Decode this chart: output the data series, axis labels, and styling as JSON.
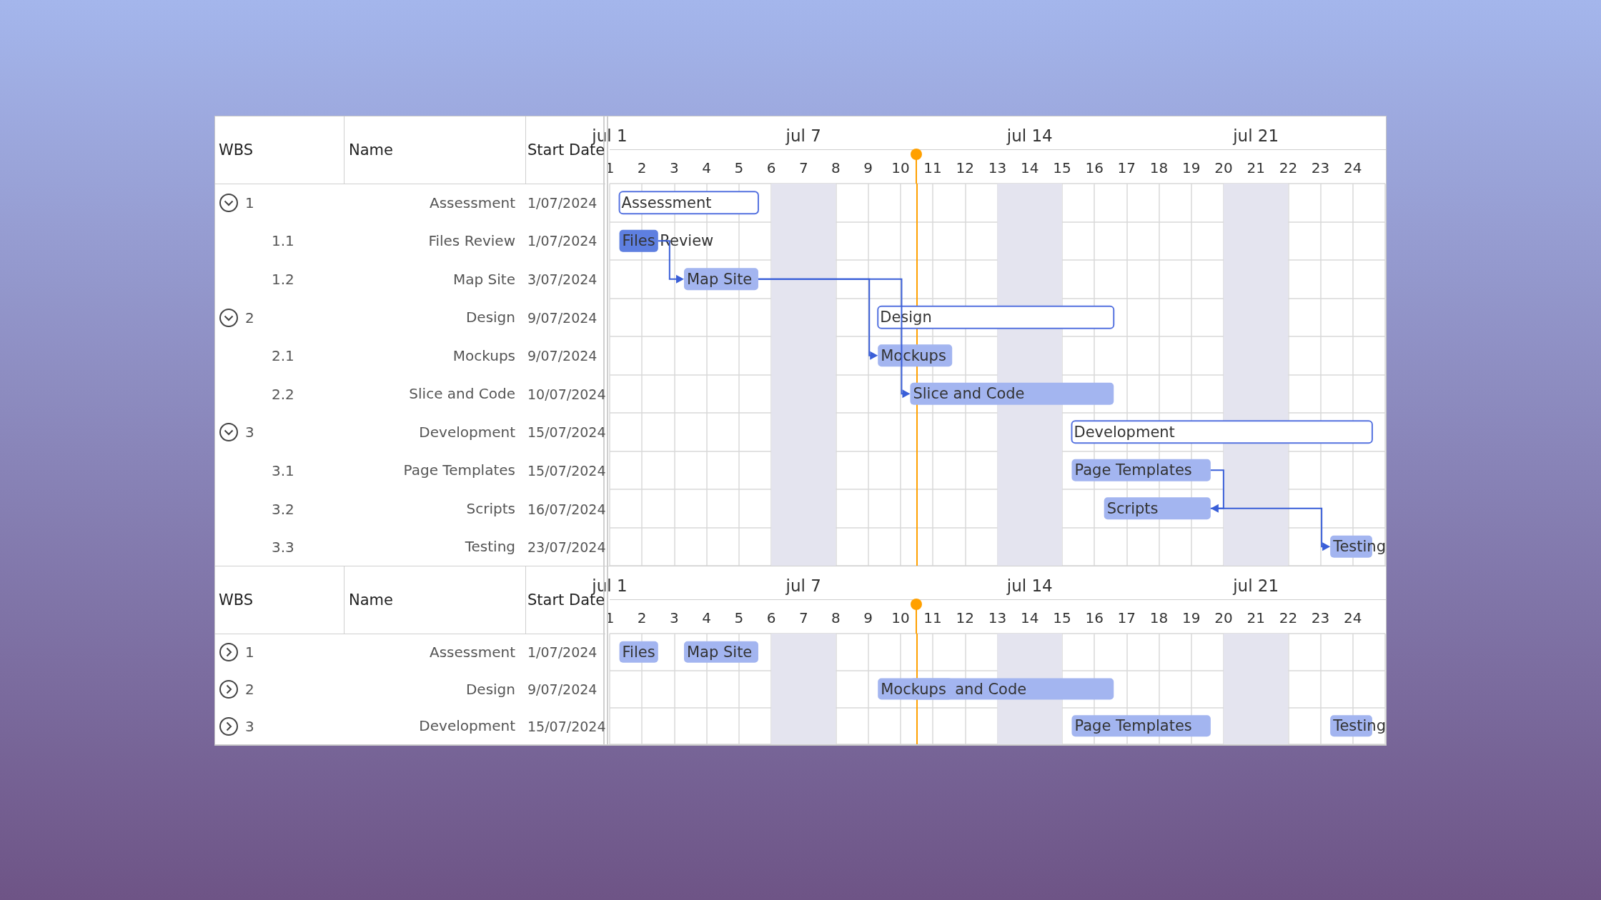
{
  "chart_data": [
    {
      "type": "bar",
      "orientation": "horizontal",
      "categories": [
        "Assessment",
        "Files Review",
        "Map Site",
        "Design",
        "Mockups",
        "Slice and Code",
        "Development",
        "Page Templates",
        "Scripts",
        "Testing"
      ],
      "y2_categories": [
        "1/07/2024",
        "1/07/2024",
        "3/07/2024",
        "9/07/2024",
        "9/07/2024",
        "10/07/2024",
        "15/07/2024",
        "15/07/2024",
        "16/07/2024",
        "23/07/2024"
      ],
      "base": [
        1.3,
        1.3,
        3.3,
        9.3,
        9.3,
        10.3,
        15.3,
        15.3,
        16.3,
        23.3
      ],
      "values": [
        4.3,
        1.2,
        2.3,
        7.3,
        2.3,
        6.3,
        9.3,
        4.3,
        3.3,
        1.3
      ],
      "colors": [
        "#ffffff",
        "#5e7fe0",
        "#a3b5f0",
        "#ffffff",
        "#a3b5f0",
        "#a3b5f0",
        "#ffffff",
        "#a3b5f0",
        "#a3b5f0",
        "#a3b5f0"
      ],
      "value_labels": [
        "Assessment",
        "Files Review",
        "Map Site",
        "Design",
        "Mockups",
        "Slice and Code",
        "Development",
        "Page Templates",
        "Scripts",
        "Testing"
      ],
      "xlim": [
        1,
        25
      ],
      "xticks": [
        1,
        2,
        3,
        4,
        5,
        6,
        7,
        8,
        9,
        10,
        11,
        12,
        13,
        14,
        15,
        16,
        17,
        18,
        19,
        20,
        21,
        22,
        23,
        24
      ],
      "x2lim": [
        "2024-07-01",
        "2024-07-25"
      ],
      "x2ticks": [
        {
          "value": "2024-07-01",
          "label": "jul 1"
        },
        {
          "value": "2024-07-07",
          "label": "jul 7"
        },
        {
          "value": "2024-07-14",
          "label": "jul 14"
        },
        {
          "value": "2024-07-21",
          "label": "jul 21"
        }
      ],
      "bands": [
        {
          "axis": "x",
          "from": 6,
          "to": 8,
          "color": "#e4e4ef"
        },
        {
          "axis": "x",
          "from": 13,
          "to": 15,
          "color": "#e4e4ef"
        },
        {
          "axis": "x",
          "from": 20,
          "to": 22,
          "color": "#e4e4ef"
        }
      ],
      "ref_lines": [
        {
          "axis": "x",
          "value": 10.5,
          "color": "#ffa000"
        }
      ],
      "grid": true,
      "annotations": [
        "WBS",
        "Name",
        "Start Date",
        "1",
        "1.1",
        "1.2",
        "2",
        "2.1",
        "2.2",
        "3",
        "3.1",
        "3.2",
        "3.3"
      ]
    },
    {
      "type": "bar",
      "orientation": "horizontal",
      "categories": [
        "Assessment",
        "Design",
        "Development"
      ],
      "y2_categories": [
        "1/07/2024",
        "9/07/2024",
        "15/07/2024"
      ],
      "series": [
        {
          "color": "#a3b5f0",
          "base": [
            1.3,
            9.3,
            15.3
          ],
          "values": [
            1.2,
            2.3,
            4.3
          ],
          "value_labels": [
            "Files",
            "Mockups",
            "Page Templates"
          ]
        },
        {
          "color": "#a3b5f0",
          "base": [
            3.3,
            10.3,
            null
          ],
          "values": [
            2.3,
            6.3,
            null
          ],
          "value_labels": [
            "Map Site",
            "and Code",
            null
          ]
        },
        {
          "color": "#a3b5f0",
          "base": [
            null,
            null,
            23.3
          ],
          "values": [
            null,
            null,
            1.3
          ],
          "value_labels": [
            null,
            null,
            "Testing"
          ]
        }
      ],
      "xlim": [
        1,
        25
      ],
      "xticks": [
        1,
        2,
        3,
        4,
        5,
        6,
        7,
        8,
        9,
        10,
        11,
        12,
        13,
        14,
        15,
        16,
        17,
        18,
        19,
        20,
        21,
        22,
        23,
        24
      ],
      "x2lim": [
        "2024-07-01",
        "2024-07-25"
      ],
      "x2ticks": [
        {
          "value": "2024-07-01",
          "label": "jul 1"
        },
        {
          "value": "2024-07-07",
          "label": "jul 7"
        },
        {
          "value": "2024-07-14",
          "label": "jul 14"
        },
        {
          "value": "2024-07-21",
          "label": "jul 21"
        }
      ],
      "bands": [
        {
          "axis": "x",
          "from": 6,
          "to": 8,
          "color": "#e4e4ef"
        },
        {
          "axis": "x",
          "from": 13,
          "to": 15,
          "color": "#e4e4ef"
        },
        {
          "axis": "x",
          "from": 20,
          "to": 22,
          "color": "#e4e4ef"
        }
      ],
      "ref_lines": [
        {
          "axis": "x",
          "value": 10.5,
          "color": "#ffa000"
        }
      ],
      "grid": true,
      "annotations": [
        "WBS",
        "Name",
        "Start Date",
        "1",
        "2",
        "3"
      ]
    }
  ]
}
